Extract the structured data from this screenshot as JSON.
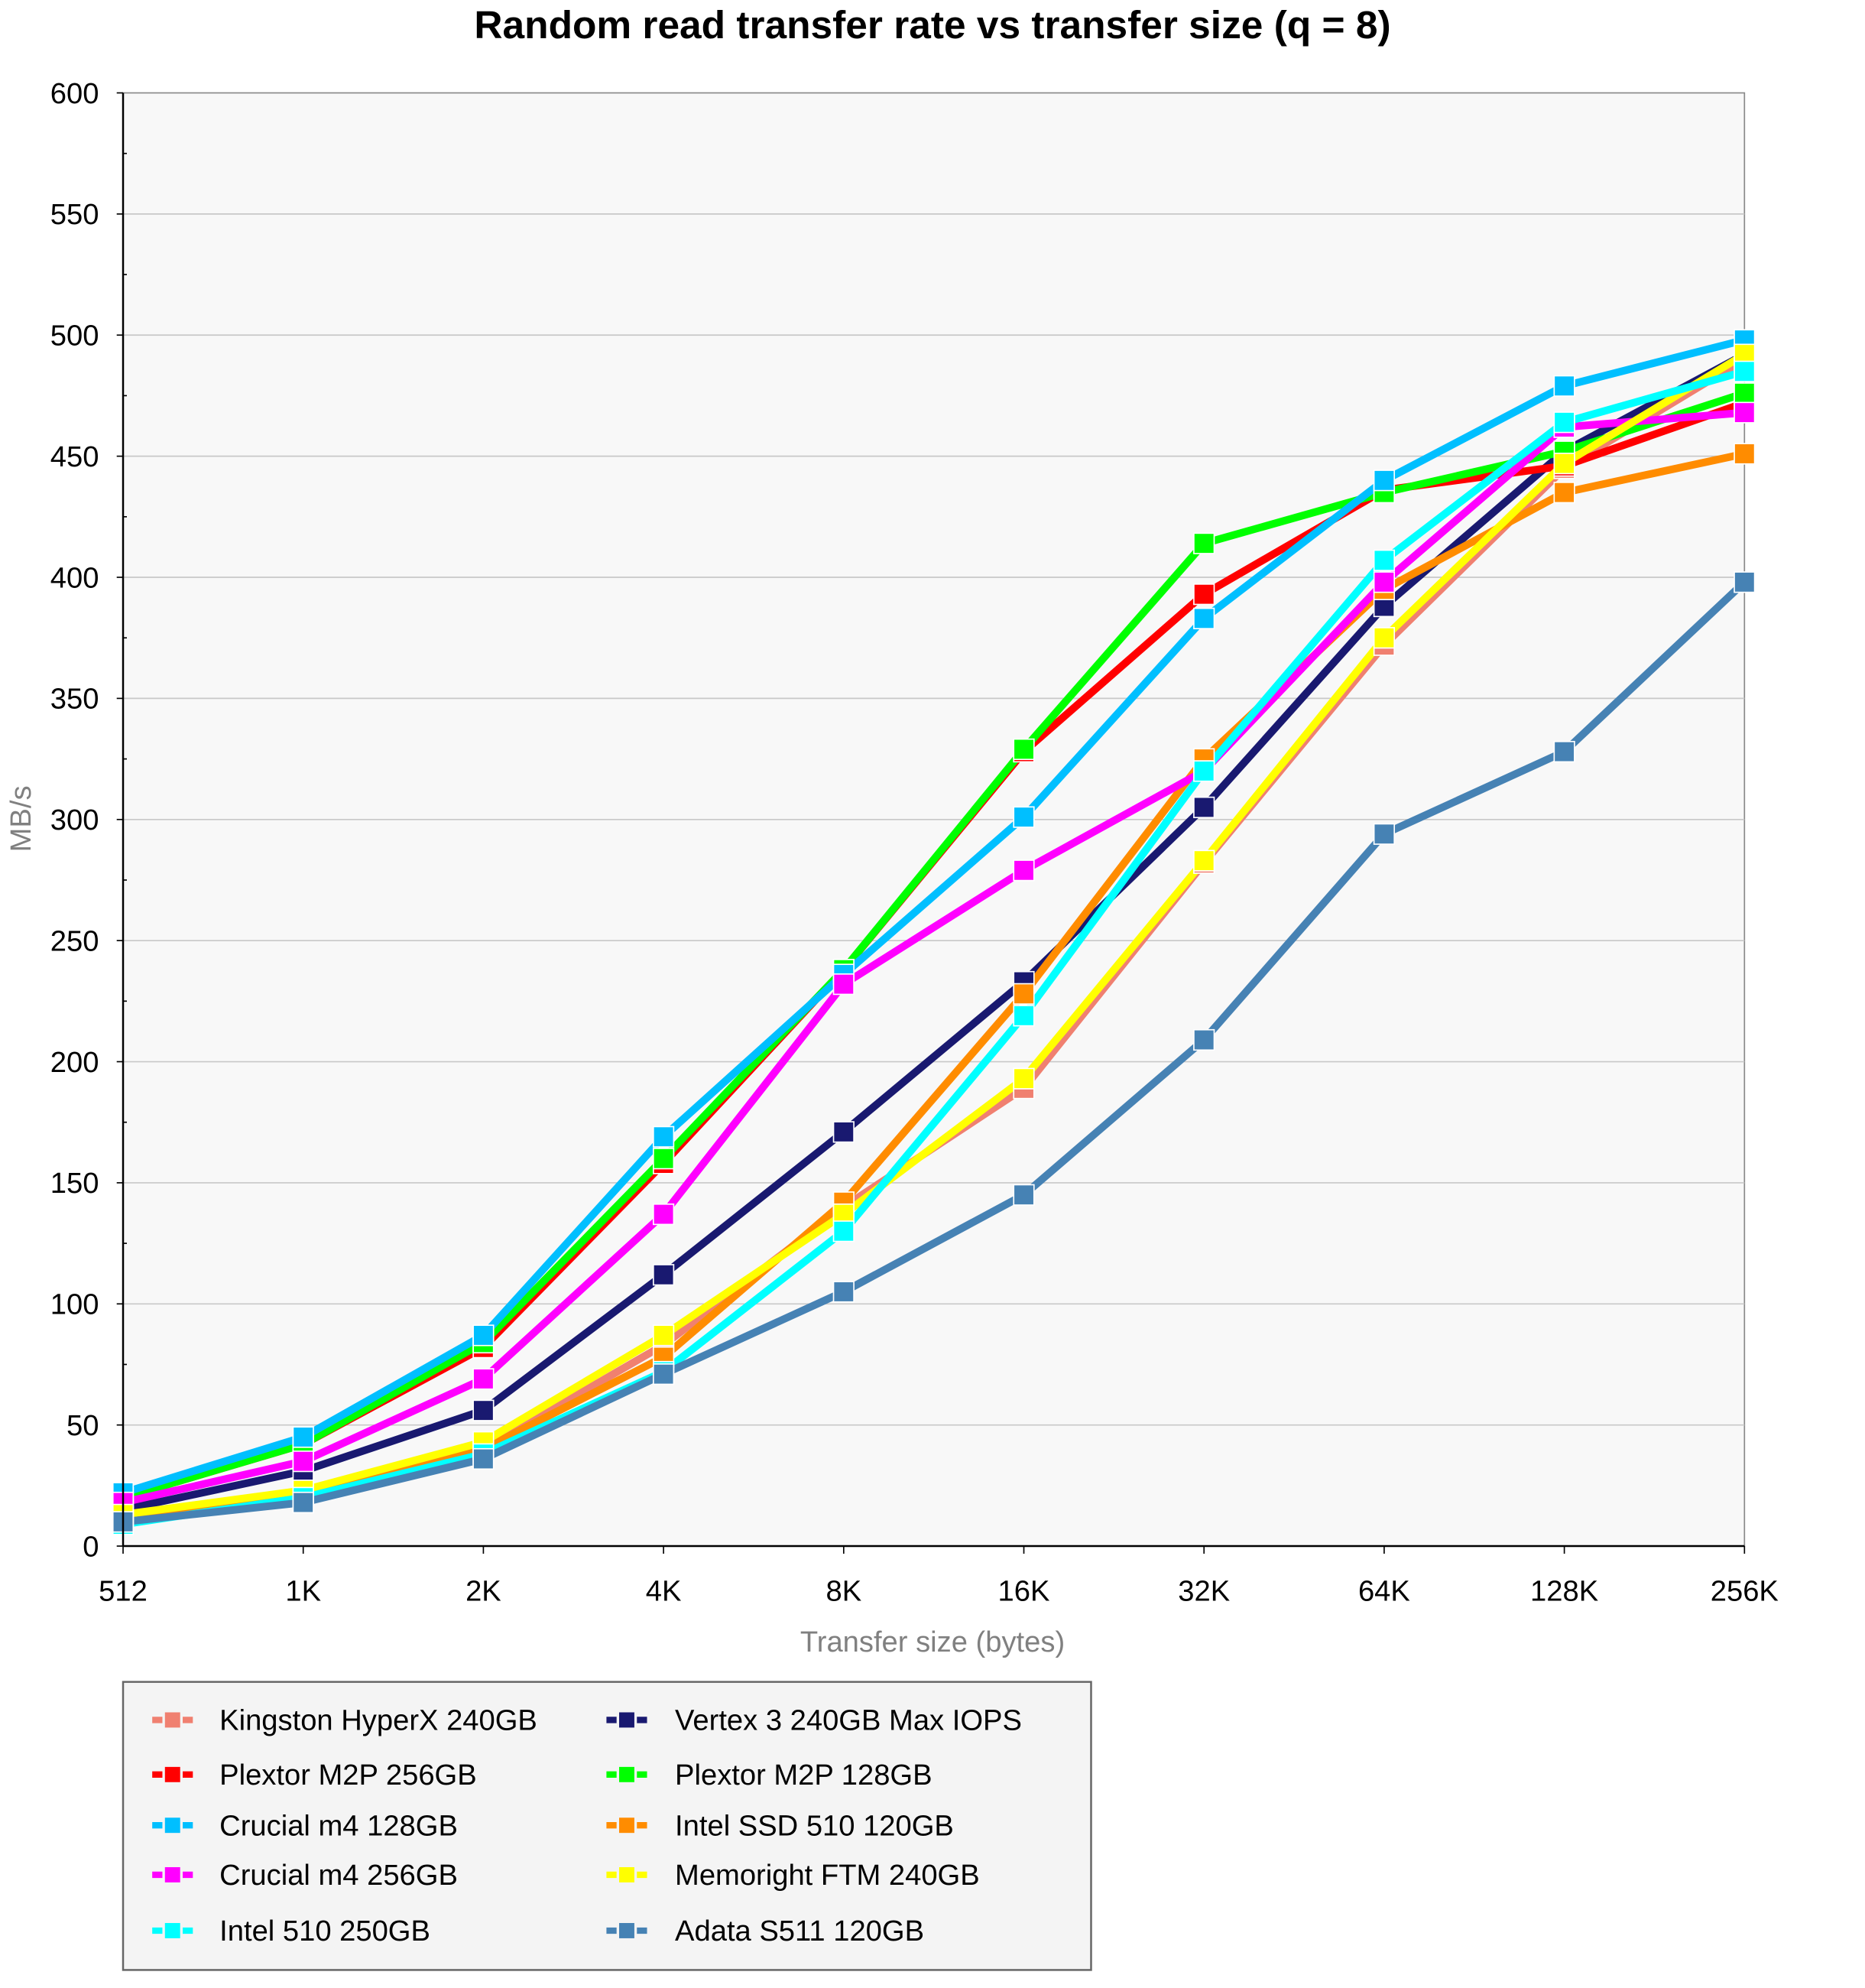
{
  "chart_data": {
    "type": "line",
    "title": "Random read transfer rate vs transfer size (q = 8)",
    "xlabel": "Transfer size (bytes)",
    "ylabel": "MB/s",
    "ylim": [
      0,
      600
    ],
    "yticks": [
      0,
      50,
      100,
      150,
      200,
      250,
      300,
      350,
      400,
      450,
      500,
      550,
      600
    ],
    "categories": [
      "512",
      "1K",
      "2K",
      "4K",
      "8K",
      "16K",
      "32K",
      "64K",
      "128K",
      "256K"
    ],
    "grid": true,
    "legend_position": "bottom-left",
    "series": [
      {
        "name": "Kingston HyperX 240GB",
        "color": "#f08070",
        "values": [
          12,
          22,
          40,
          83,
          140,
          189,
          282,
          372,
          445,
          490
        ]
      },
      {
        "name": "Vertex 3 240GB Max IOPS",
        "color": "#191970",
        "values": [
          15,
          31,
          56,
          112,
          171,
          233,
          305,
          388,
          452,
          492
        ]
      },
      {
        "name": "Plextor M2P 256GB",
        "color": "#ff0000",
        "values": [
          20,
          42,
          82,
          158,
          238,
          328,
          393,
          436,
          446,
          472
        ]
      },
      {
        "name": "Plextor M2P 128GB",
        "color": "#00ff00",
        "values": [
          20,
          42,
          84,
          160,
          238,
          329,
          414,
          435,
          452,
          476
        ]
      },
      {
        "name": "Crucial m4 128GB",
        "color": "#00bfff",
        "values": [
          22,
          45,
          87,
          169,
          236,
          301,
          383,
          440,
          479,
          498
        ]
      },
      {
        "name": "Intel SSD 510 120GB",
        "color": "#ff8c00",
        "values": [
          12,
          20,
          40,
          78,
          142,
          228,
          325,
          395,
          435,
          451
        ]
      },
      {
        "name": "Crucial m4 256GB",
        "color": "#ff00ff",
        "values": [
          18,
          35,
          69,
          137,
          232,
          279,
          320,
          398,
          462,
          468
        ]
      },
      {
        "name": "Memoright FTM 240GB",
        "color": "#ffff00",
        "values": [
          13,
          23,
          43,
          87,
          137,
          193,
          283,
          375,
          447,
          492
        ]
      },
      {
        "name": "Intel 510 250GB",
        "color": "#00ffff",
        "values": [
          9,
          20,
          38,
          72,
          130,
          219,
          320,
          407,
          464,
          485
        ]
      },
      {
        "name": "Adata S511 120GB",
        "color": "#4682b4",
        "values": [
          10,
          18,
          36,
          71,
          105,
          145,
          209,
          294,
          328,
          398
        ]
      }
    ]
  }
}
